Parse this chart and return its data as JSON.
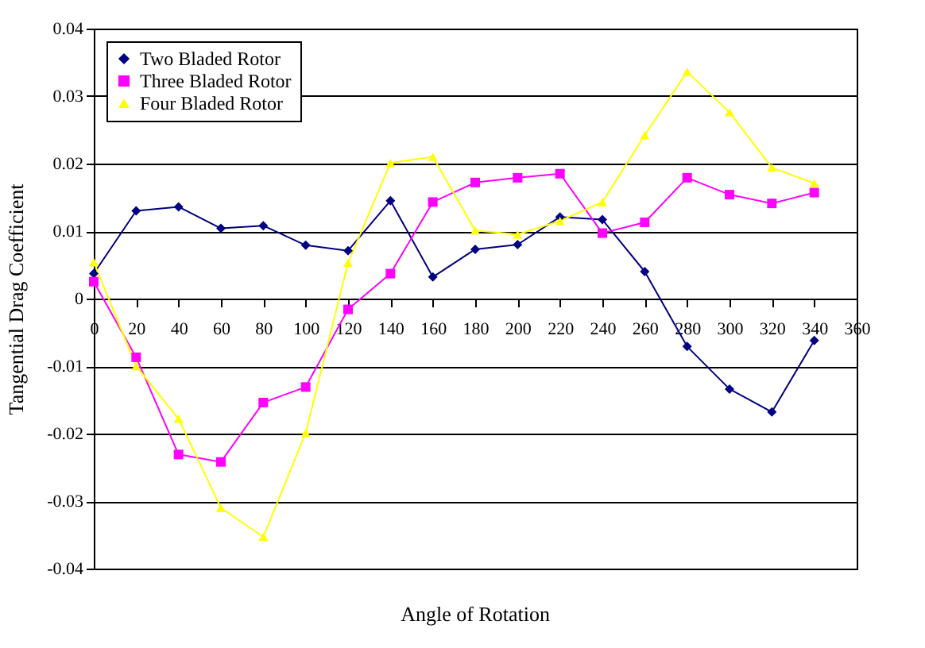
{
  "chart_data": {
    "type": "line",
    "xlabel": "Angle of Rotation",
    "ylabel": "Tangential Drag Coefficient",
    "x": [
      0,
      20,
      40,
      60,
      80,
      100,
      120,
      140,
      160,
      180,
      200,
      220,
      240,
      260,
      280,
      300,
      320,
      340
    ],
    "series": [
      {
        "name": "Two Bladed Rotor",
        "color": "#000080",
        "marker": "diamond",
        "values": [
          0.0037,
          0.013,
          0.0136,
          0.0104,
          0.0108,
          0.0079,
          0.0071,
          0.0145,
          0.0032,
          0.0073,
          0.008,
          0.0121,
          0.0117,
          0.004,
          -0.0071,
          -0.0134,
          -0.0168,
          -0.0062
        ]
      },
      {
        "name": "Three Bladed Rotor",
        "color": "#ff00ff",
        "marker": "square",
        "values": [
          0.0025,
          -0.0087,
          -0.0231,
          -0.0242,
          -0.0154,
          -0.0131,
          -0.0016,
          0.0037,
          0.0143,
          0.0172,
          0.0179,
          0.0185,
          0.0097,
          0.0113,
          0.0179,
          0.0154,
          0.0141,
          0.0157
        ]
      },
      {
        "name": "Four Bladed Rotor",
        "color": "#ffff00",
        "marker": "triangle",
        "values": [
          0.0054,
          -0.01,
          -0.0178,
          -0.031,
          -0.0353,
          -0.0199,
          0.0053,
          0.0201,
          0.021,
          0.0101,
          0.0095,
          0.0115,
          0.0143,
          0.0242,
          0.0336,
          0.0276,
          0.0194,
          0.0171
        ]
      }
    ],
    "xlim": [
      0,
      360
    ],
    "xticks": [
      0,
      20,
      40,
      60,
      80,
      100,
      120,
      140,
      160,
      180,
      200,
      220,
      240,
      260,
      280,
      300,
      320,
      340,
      360
    ],
    "ylim": [
      -0.04,
      0.04
    ],
    "yticks": [
      {
        "value": -0.04,
        "label": "-0.04"
      },
      {
        "value": -0.03,
        "label": "-0.03"
      },
      {
        "value": -0.02,
        "label": "-0.02"
      },
      {
        "value": -0.01,
        "label": "-0.01"
      },
      {
        "value": 0,
        "label": "0"
      },
      0.01,
      0.02,
      0.03,
      0.04
    ],
    "grid": "y",
    "legend": "top left",
    "line_style": "solid"
  }
}
